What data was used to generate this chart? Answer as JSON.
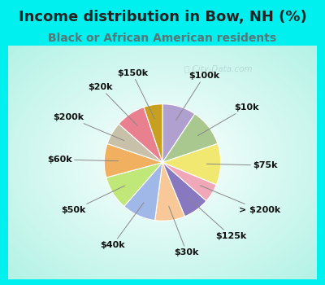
{
  "title": "Income distribution in Bow, NH (%)",
  "subtitle": "Black or African American residents",
  "labels": [
    "$100k",
    "$10k",
    "$75k",
    "> $200k",
    "$125k",
    "$30k",
    "$40k",
    "$50k",
    "$60k",
    "$200k",
    "$20k",
    "$150k"
  ],
  "values": [
    9,
    10,
    11,
    5,
    7,
    8,
    9,
    9,
    9,
    6,
    8,
    5
  ],
  "colors": [
    "#b0a0d0",
    "#a8c890",
    "#f0e870",
    "#f0a8b8",
    "#8878c0",
    "#f8c898",
    "#a0b8e8",
    "#c0e878",
    "#f0b060",
    "#c8c0a8",
    "#e88090",
    "#c8a020"
  ],
  "bg_color": "#00efef",
  "chart_bg_center": "#ffffff",
  "chart_bg_edge": "#00efef",
  "title_color": "#222222",
  "subtitle_color": "#557777",
  "label_color": "#111111",
  "label_fontsize": 8,
  "title_fontsize": 13,
  "subtitle_fontsize": 10,
  "watermark_color": "#a0c8c8",
  "watermark_alpha": 0.6
}
